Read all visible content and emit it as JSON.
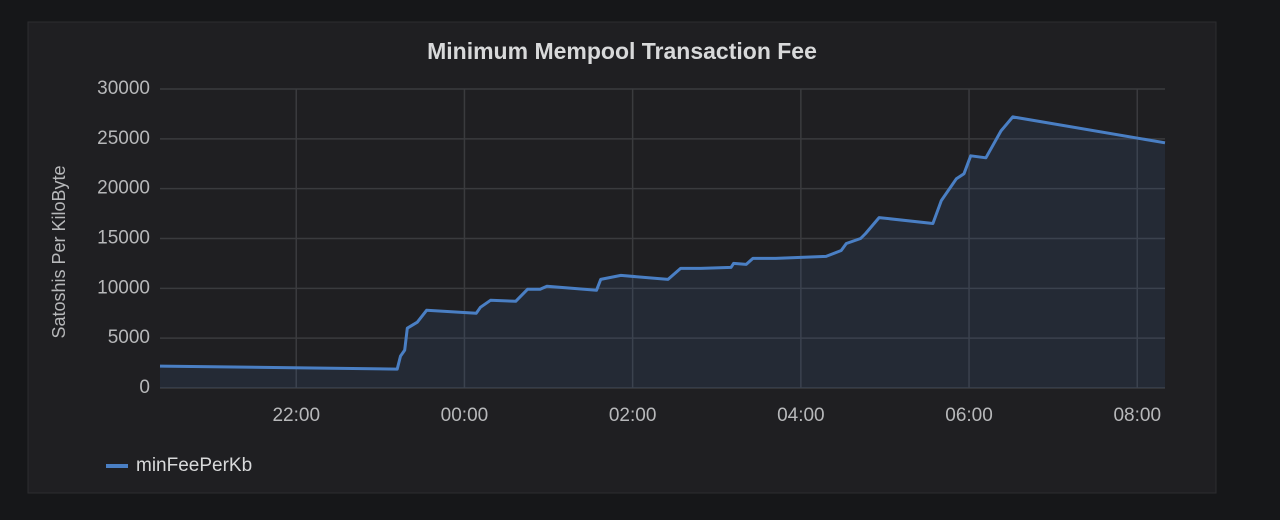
{
  "chart_data": {
    "type": "line",
    "title": "Minimum Mempool Transaction Fee",
    "y_label": "Satoshis Per KiloByte",
    "grid": true,
    "legend": "bottom-left",
    "xlim": [
      20.38,
      32.33
    ],
    "xticks": [
      {
        "value": 22,
        "label": "22:00"
      },
      {
        "value": 24,
        "label": "00:00"
      },
      {
        "value": 26,
        "label": "02:00"
      },
      {
        "value": 28,
        "label": "04:00"
      },
      {
        "value": 30,
        "label": "06:00"
      },
      {
        "value": 32,
        "label": "08:00"
      }
    ],
    "ylim": [
      0,
      30000
    ],
    "yticks": [
      0,
      5000,
      10000,
      15000,
      20000,
      25000,
      30000
    ],
    "x": [
      20.38,
      23.2,
      23.24,
      23.29,
      23.32,
      23.38,
      23.44,
      23.55,
      24.14,
      24.19,
      24.31,
      24.61,
      24.75,
      24.9,
      24.98,
      25.57,
      25.62,
      25.86,
      26.42,
      26.57,
      26.81,
      27.17,
      27.2,
      27.35,
      27.43,
      27.7,
      28.0,
      28.3,
      28.48,
      28.54,
      28.71,
      28.77,
      28.93,
      29.57,
      29.67,
      29.85,
      29.94,
      30.02,
      30.2,
      30.38,
      30.52,
      32.33
    ],
    "series": [
      {
        "name": "minFeePerKb",
        "color": "#4a7fc4",
        "values": [
          2200,
          1900,
          3200,
          3800,
          6000,
          6300,
          6600,
          7800,
          7500,
          8100,
          8800,
          8700,
          9900,
          9900,
          10200,
          9800,
          10900,
          11300,
          10900,
          12000,
          12000,
          12100,
          12500,
          12400,
          13000,
          13000,
          13100,
          13200,
          13800,
          14500,
          15000,
          15500,
          17100,
          16500,
          18800,
          21000,
          21500,
          23300,
          23100,
          25800,
          27200,
          24600
        ]
      }
    ]
  }
}
